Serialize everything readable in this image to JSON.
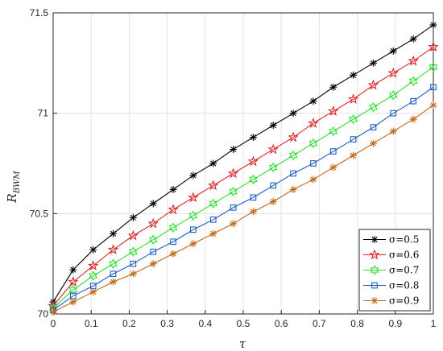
{
  "chart_data": {
    "type": "line",
    "x": [
      0,
      0.0526,
      0.1053,
      0.1579,
      0.2105,
      0.2632,
      0.3158,
      0.3684,
      0.4211,
      0.4737,
      0.5263,
      0.5789,
      0.6316,
      0.6842,
      0.7368,
      0.7895,
      0.8421,
      0.8947,
      0.9474,
      1.0
    ],
    "series": [
      {
        "name": "σ=0.5",
        "color": "#000000",
        "marker": "asterisk",
        "values": [
          70.06,
          70.22,
          70.32,
          70.4,
          70.48,
          70.55,
          70.62,
          70.69,
          70.75,
          70.82,
          70.88,
          70.94,
          71.0,
          71.06,
          71.13,
          71.19,
          71.25,
          71.31,
          71.37,
          71.44
        ]
      },
      {
        "name": "σ=0.6",
        "color": "#d62728",
        "marker": "star",
        "values": [
          70.04,
          70.16,
          70.24,
          70.32,
          70.39,
          70.45,
          70.52,
          70.58,
          70.64,
          70.7,
          70.76,
          70.82,
          70.88,
          70.95,
          71.01,
          71.07,
          71.14,
          71.2,
          71.26,
          71.33
        ]
      },
      {
        "name": "σ=0.7",
        "color": "#33dd33",
        "marker": "hexagram",
        "values": [
          70.03,
          70.12,
          70.19,
          70.25,
          70.31,
          70.37,
          70.43,
          70.49,
          70.55,
          70.61,
          70.67,
          70.73,
          70.79,
          70.85,
          70.91,
          70.97,
          71.03,
          71.09,
          71.16,
          71.23
        ]
      },
      {
        "name": "σ=0.8",
        "color": "#1f5fbf",
        "marker": "square",
        "values": [
          70.02,
          70.09,
          70.14,
          70.2,
          70.25,
          70.31,
          70.36,
          70.42,
          70.47,
          70.53,
          70.58,
          70.64,
          70.7,
          70.75,
          70.81,
          70.87,
          70.93,
          71.0,
          71.06,
          71.13
        ]
      },
      {
        "name": "σ=0.9",
        "color": "#c06a1a",
        "marker": "asterisk",
        "values": [
          70.01,
          70.06,
          70.11,
          70.16,
          70.2,
          70.25,
          70.3,
          70.35,
          70.4,
          70.45,
          70.51,
          70.56,
          70.62,
          70.67,
          70.73,
          70.79,
          70.85,
          70.91,
          70.97,
          71.04
        ]
      }
    ],
    "x_ticks": [
      "0",
      "0.1",
      "0.2",
      "0.3",
      "0.4",
      "0.5",
      "0.6",
      "0.7",
      "0.8",
      "0.9",
      "1"
    ],
    "y_ticks": [
      "70",
      "70.5",
      "71",
      "71.5"
    ],
    "xlabel": "τ",
    "ylabel_main": "R",
    "ylabel_sub": "BWM",
    "xlim": [
      0,
      1
    ],
    "ylim": [
      70,
      71.5
    ],
    "grid": true,
    "legend_position": "bottom-right"
  }
}
